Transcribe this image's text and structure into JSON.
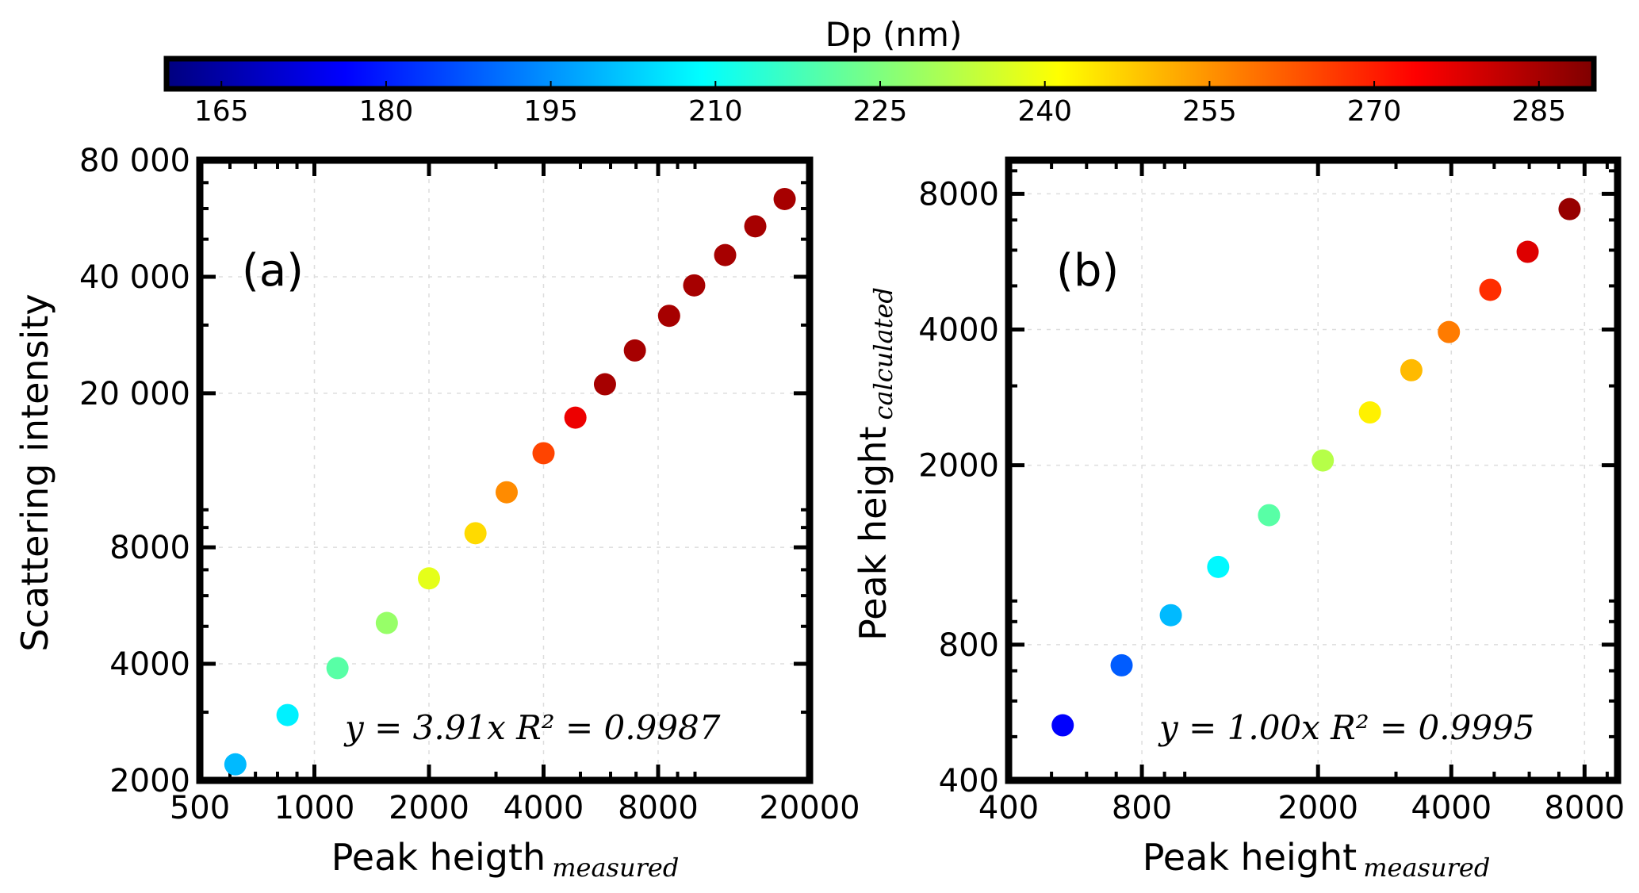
{
  "colorbar": {
    "label": "Dp (nm)",
    "min": 160,
    "max": 290,
    "ticks": [
      165,
      180,
      195,
      210,
      225,
      240,
      255,
      270,
      285
    ],
    "stops": [
      "#00007f",
      "#0000ff",
      "#007fff",
      "#00ffff",
      "#7fff7f",
      "#ffff00",
      "#ff7f00",
      "#ff0000",
      "#7f0000"
    ]
  },
  "chart_data": [
    {
      "type": "scatter",
      "panel_label": "(a)",
      "xscale": "log",
      "yscale": "log",
      "xlim": [
        500,
        20000
      ],
      "ylim": [
        2000,
        80000
      ],
      "xlabel_main": "Peak heigth",
      "xlabel_sub": "measured",
      "ylabel_main": "Scattering intensity",
      "ylabel_sub": "",
      "xticks": [
        500,
        1000,
        2000,
        4000,
        8000,
        20000
      ],
      "xtick_labels": [
        "500",
        "1000",
        "2000",
        "4000",
        "8000",
        "20000"
      ],
      "yticks": [
        2000,
        4000,
        8000,
        20000,
        40000,
        80000
      ],
      "ytick_labels": [
        "2000",
        "4000",
        "8000",
        "20 000",
        "40 000",
        "80 000"
      ],
      "fit_text": "y = 3.91x  R² = 0.9987",
      "x": [
        620,
        850,
        1150,
        1550,
        2000,
        2650,
        3200,
        4000,
        4850,
        5800,
        6950,
        8550,
        9950,
        12000,
        14400,
        17200
      ],
      "y": [
        2200,
        2950,
        3900,
        5100,
        6650,
        8700,
        11100,
        14000,
        17300,
        21100,
        25800,
        31700,
        38000,
        45500,
        54000,
        63500
      ],
      "dp": [
        200,
        207,
        220,
        228,
        238,
        246,
        256,
        265,
        276,
        285,
        285,
        285,
        285,
        285,
        285,
        285
      ]
    },
    {
      "type": "scatter",
      "panel_label": "(b)",
      "xscale": "log",
      "yscale": "log",
      "xlim": [
        400,
        9500
      ],
      "ylim": [
        400,
        9500
      ],
      "xlabel_main": "Peak height",
      "xlabel_sub": "measured",
      "ylabel_main": "Peak height",
      "ylabel_sub": "calculated",
      "xticks": [
        400,
        800,
        2000,
        4000,
        8000
      ],
      "xtick_labels": [
        "400",
        "800",
        "2000",
        "4000",
        "8000"
      ],
      "yticks": [
        400,
        800,
        2000,
        4000,
        8000
      ],
      "ytick_labels": [
        "400",
        "800",
        "2000",
        "4000",
        "8000"
      ],
      "fit_text": "y = 1.00x  R² = 0.9995",
      "x": [
        530,
        720,
        930,
        1190,
        1550,
        2050,
        2620,
        3250,
        3950,
        4900,
        5950,
        7400
      ],
      "y": [
        530,
        720,
        930,
        1190,
        1550,
        2050,
        2620,
        3250,
        3950,
        4900,
        5950,
        7400
      ],
      "dp": [
        176,
        188,
        200,
        208,
        220,
        232,
        243,
        250,
        258,
        268,
        278,
        287
      ]
    }
  ]
}
